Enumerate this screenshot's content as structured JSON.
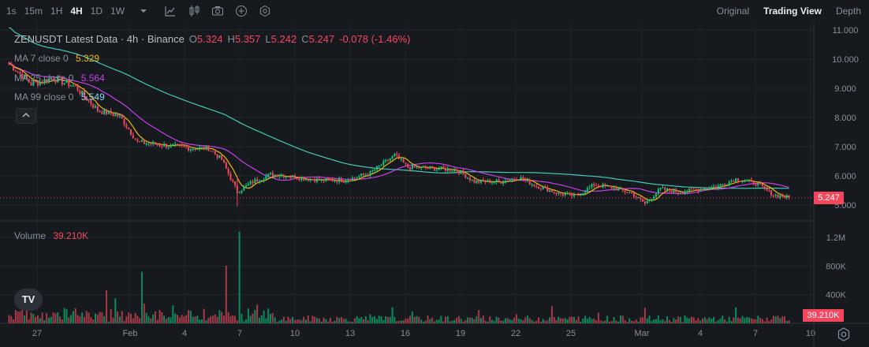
{
  "toolbar": {
    "intervals": [
      "1s",
      "15m",
      "1H",
      "4H",
      "1D",
      "1W"
    ],
    "active_interval": "4H",
    "views": [
      "Original",
      "Trading View",
      "Depth"
    ],
    "active_view": "Trading View"
  },
  "legend": {
    "title": "ZENUSDT Latest Data · 4h · Binance",
    "open_label": "O",
    "open": "5.324",
    "high_label": "H",
    "high": "5.357",
    "low_label": "L",
    "low": "5.242",
    "close_label": "C",
    "close": "5.247",
    "change": "-0.078 (-1.46%)",
    "ma7_label": "MA 7 close 0",
    "ma7": "5.329",
    "ma25_label": "MA 25 close 0",
    "ma25": "5.564",
    "ma99_label": "MA 99 close 0",
    "ma99": "5.549",
    "volume_label": "Volume",
    "volume": "39.210K",
    "logo": "TV"
  },
  "price_axis": {
    "ticks": [
      "11.000",
      "10.000",
      "9.000",
      "8.000",
      "7.000",
      "6.000",
      "5.000"
    ],
    "current_price_tag": "5.247"
  },
  "volume_axis": {
    "ticks": [
      "1.2M",
      "800K",
      "400K"
    ],
    "current_volume_tag": "39.210K"
  },
  "time_axis": {
    "ticks": [
      "27",
      "Feb",
      "4",
      "7",
      "10",
      "13",
      "16",
      "19",
      "22",
      "25",
      "Mar",
      "4",
      "7",
      "10"
    ]
  },
  "colors": {
    "up": "#0ecb81",
    "down": "#f6465d",
    "ma7": "#f0b90b",
    "ma25": "#c840e9",
    "ma99": "#44c9b8",
    "ma99_value_text": "#8ad7f5"
  },
  "icons": [
    "dropdown-icon",
    "line-tool-icon",
    "candle-type-icon",
    "screenshot-icon",
    "add-indicator-icon",
    "settings-icon"
  ],
  "chart_data": {
    "type": "candlestick",
    "symbol": "ZENUSDT",
    "interval": "4h",
    "ylim": [
      4.85,
      11.1
    ],
    "volume_ylim": [
      0,
      1500000
    ],
    "waypoints": [
      {
        "t": 0,
        "p": 9.85
      },
      {
        "t": 10,
        "p": 9.15
      },
      {
        "t": 20,
        "p": 9.35
      },
      {
        "t": 30,
        "p": 9.05
      },
      {
        "t": 40,
        "p": 8.25
      },
      {
        "t": 50,
        "p": 8.05
      },
      {
        "t": 58,
        "p": 7.15
      },
      {
        "t": 70,
        "p": 7.05
      },
      {
        "t": 82,
        "p": 6.95
      },
      {
        "t": 90,
        "p": 6.95
      },
      {
        "t": 96,
        "p": 6.55
      },
      {
        "t": 103,
        "p": 5.45
      },
      {
        "t": 110,
        "p": 5.8
      },
      {
        "t": 118,
        "p": 6.05
      },
      {
        "t": 126,
        "p": 6.0
      },
      {
        "t": 134,
        "p": 5.9
      },
      {
        "t": 142,
        "p": 5.85
      },
      {
        "t": 152,
        "p": 5.85
      },
      {
        "t": 163,
        "p": 6.1
      },
      {
        "t": 174,
        "p": 6.7
      },
      {
        "t": 180,
        "p": 6.3
      },
      {
        "t": 192,
        "p": 6.25
      },
      {
        "t": 202,
        "p": 6.2
      },
      {
        "t": 210,
        "p": 5.8
      },
      {
        "t": 222,
        "p": 5.8
      },
      {
        "t": 230,
        "p": 5.95
      },
      {
        "t": 238,
        "p": 5.65
      },
      {
        "t": 248,
        "p": 5.4
      },
      {
        "t": 256,
        "p": 5.3
      },
      {
        "t": 264,
        "p": 5.7
      },
      {
        "t": 272,
        "p": 5.6
      },
      {
        "t": 281,
        "p": 5.4
      },
      {
        "t": 287,
        "p": 5.05
      },
      {
        "t": 294,
        "p": 5.55
      },
      {
        "t": 302,
        "p": 5.45
      },
      {
        "t": 312,
        "p": 5.55
      },
      {
        "t": 320,
        "p": 5.65
      },
      {
        "t": 328,
        "p": 5.9
      },
      {
        "t": 337,
        "p": 5.75
      },
      {
        "t": 345,
        "p": 5.35
      },
      {
        "t": 352,
        "p": 5.25
      }
    ],
    "volume_spikes": [
      {
        "t": 60,
        "v": 720000
      },
      {
        "t": 98,
        "v": 800000
      },
      {
        "t": 104,
        "v": 1280000
      },
      {
        "t": 48,
        "v": 350000
      },
      {
        "t": 44,
        "v": 460000
      },
      {
        "t": 245,
        "v": 240000
      },
      {
        "t": 287,
        "v": 220000
      }
    ],
    "last_close": 5.247,
    "last_volume": 39210
  }
}
